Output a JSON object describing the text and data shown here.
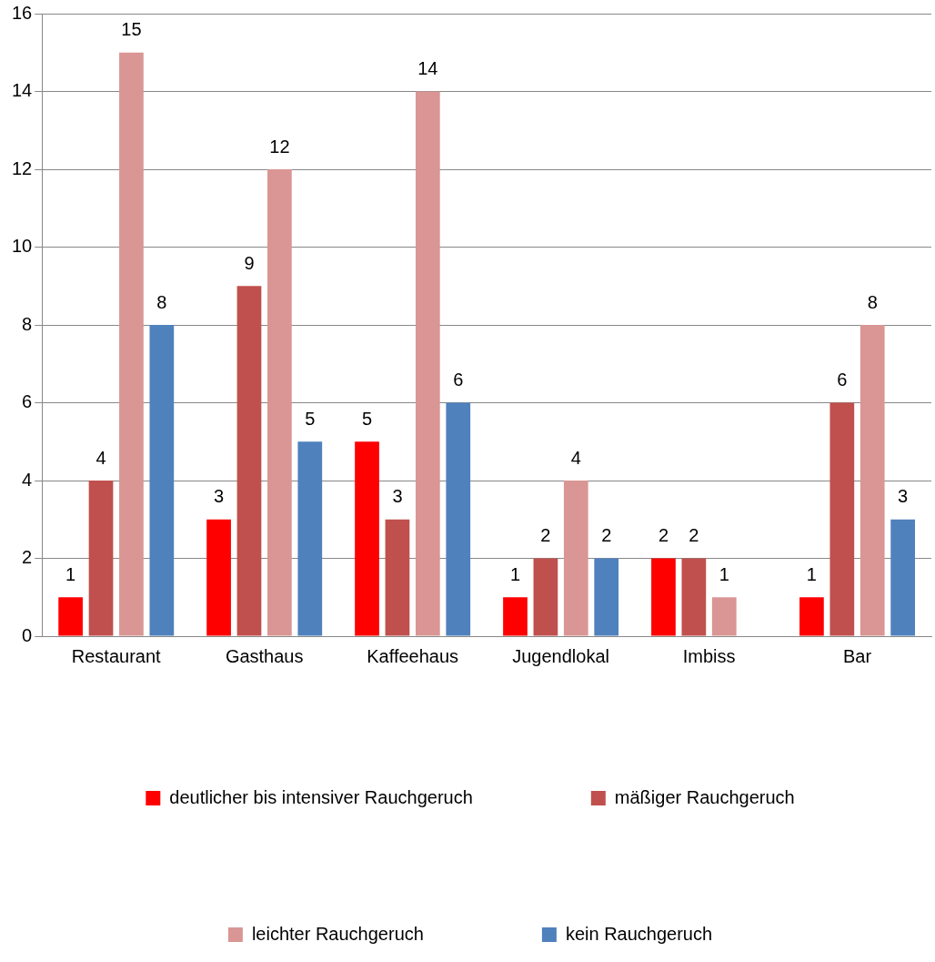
{
  "chart_data": {
    "type": "bar",
    "categories": [
      "Restaurant",
      "Gasthaus",
      "Kaffeehaus",
      "Jugendlokal",
      "Imbiss",
      "Bar"
    ],
    "series": [
      {
        "name": "deutlicher bis intensiver Rauchgeruch",
        "color": "#ff0000",
        "values": [
          1,
          3,
          5,
          1,
          2,
          1
        ]
      },
      {
        "name": "mäßiger Rauchgeruch",
        "color": "#c0504d",
        "values": [
          4,
          9,
          3,
          2,
          2,
          6
        ]
      },
      {
        "name": "leichter Rauchgeruch",
        "color": "#d99694",
        "values": [
          15,
          12,
          14,
          4,
          1,
          8
        ]
      },
      {
        "name": "kein Rauchgeruch",
        "color": "#4f81bd",
        "values": [
          8,
          5,
          6,
          2,
          null,
          3
        ]
      }
    ],
    "ylim": [
      0,
      16
    ],
    "yticks": [
      0,
      2,
      4,
      6,
      8,
      10,
      12,
      14,
      16
    ],
    "grid": "y",
    "legend": "bottom",
    "data_labels": true
  }
}
